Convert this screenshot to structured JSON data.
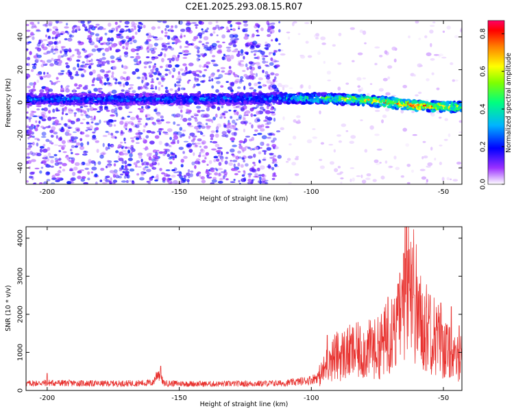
{
  "title": "C2E1.2025.293.08.15.R07",
  "colors": {
    "snr_line": "#e8322f",
    "background": "#ffffff",
    "axis": "#000000"
  },
  "chart_data": [
    {
      "type": "heatmap",
      "name": "spectrogram",
      "xlabel": "Height of straight line (km)",
      "ylabel": "Frequency (Hz)",
      "xlim": [
        -208,
        -43
      ],
      "ylim": [
        -50,
        50
      ],
      "xticks": [
        "-200",
        "-150",
        "-100",
        "-50"
      ],
      "yticks": [
        "-40",
        "-20",
        "0",
        "20",
        "40"
      ],
      "grid": false,
      "colorbar": {
        "label": "Normalized spectral amplitude",
        "range": [
          0,
          0.87
        ],
        "ticks": [
          "0.0",
          "0.2",
          "0.4",
          "0.6",
          "0.8"
        ],
        "colormap": "rainbow"
      },
      "bands": [
        {
          "x": [
            -208,
            -112
          ],
          "y": [
            -50,
            50
          ],
          "level": 0.06
        },
        {
          "x": [
            -112,
            -43
          ],
          "y": [
            -50,
            50
          ],
          "level": 0.02
        }
      ],
      "ridge": {
        "x": [
          -208,
          -180,
          -150,
          -120,
          -100,
          -80,
          -60,
          -43
        ],
        "center": [
          2,
          2,
          2,
          2.5,
          2.5,
          1.5,
          -2,
          -3
        ],
        "halfwidth": 3,
        "peak_level": [
          0.3,
          0.3,
          0.3,
          0.3,
          0.45,
          0.7,
          0.82,
          0.6
        ]
      }
    },
    {
      "type": "line",
      "name": "snr",
      "xlabel": "Height of straight line (km)",
      "ylabel": "SNR (10 * v/v)",
      "xlim": [
        -208,
        -43
      ],
      "ylim": [
        0,
        4300
      ],
      "xticks": [
        "-200",
        "-150",
        "-100",
        "-50"
      ],
      "yticks": [
        "0",
        "1000",
        "2000",
        "3000",
        "4000"
      ],
      "grid": false,
      "series": [
        {
          "x": [
            -208,
            -200,
            -190,
            -180,
            -170,
            -160,
            -158,
            -156,
            -150,
            -140,
            -130,
            -120,
            -110,
            -105,
            -100,
            -97,
            -95,
            -93,
            -90,
            -85,
            -80,
            -75,
            -72,
            -70,
            -68,
            -66,
            -64,
            -62,
            -60,
            -58,
            -55,
            -52,
            -50,
            -48,
            -46,
            -44,
            -43
          ],
          "values": [
            180,
            200,
            190,
            180,
            185,
            200,
            480,
            190,
            180,
            170,
            175,
            180,
            190,
            230,
            280,
            380,
            550,
            850,
            900,
            1000,
            1050,
            1100,
            1300,
            1700,
            1550,
            1900,
            2800,
            3200,
            2100,
            1700,
            1600,
            1350,
            1150,
            1000,
            800,
            850,
            1000
          ],
          "peaks": {
            "x": [
              -200,
              -157,
              -94,
              -93,
              -77,
              -71,
              -69,
              -67,
              -65,
              -64,
              -63,
              -62,
              -61,
              -59,
              -55,
              -51,
              -47,
              -44
            ],
            "values": [
              450,
              640,
              1450,
              1000,
              1650,
              2450,
              2250,
              2800,
              3600,
              4300,
              3700,
              3300,
              2500,
              2800,
              2500,
              2300,
              2200,
              1700
            ]
          }
        }
      ]
    }
  ]
}
